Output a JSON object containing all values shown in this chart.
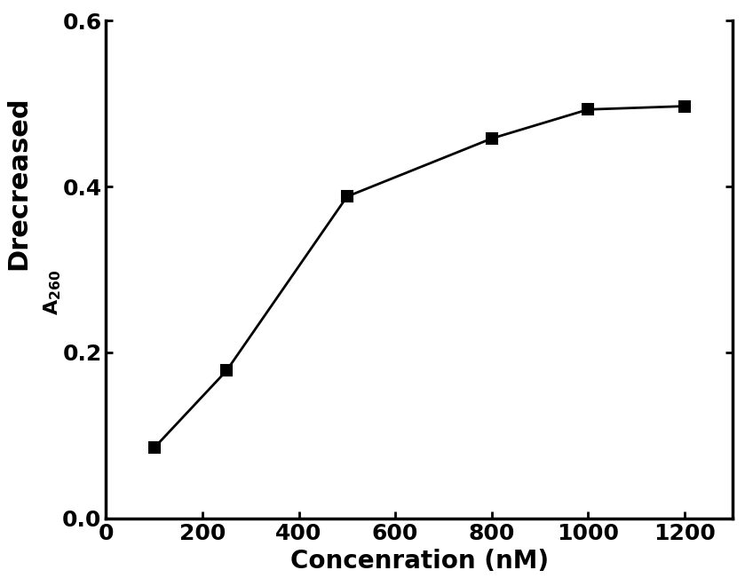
{
  "x": [
    100,
    250,
    500,
    800,
    1000,
    1200
  ],
  "y": [
    0.085,
    0.178,
    0.388,
    0.458,
    0.493,
    0.497
  ],
  "xlabel": "Concenration (nM)",
  "xlim": [
    0,
    1300
  ],
  "ylim": [
    0.0,
    0.6
  ],
  "xticks": [
    0,
    200,
    400,
    600,
    800,
    1000,
    1200
  ],
  "yticks": [
    0.0,
    0.2,
    0.4,
    0.6
  ],
  "marker": "s",
  "marker_size": 8,
  "line_color": "#000000",
  "marker_color": "#000000",
  "marker_facecolor": "#000000",
  "line_width": 2.0,
  "background_color": "#ffffff",
  "xlabel_fontsize": 20,
  "ylabel_main_fontsize": 22,
  "ylabel_sub_fontsize": 16,
  "tick_fontsize": 18,
  "tick_fontweight": "bold",
  "label_fontweight": "bold",
  "spine_linewidth": 2.5
}
